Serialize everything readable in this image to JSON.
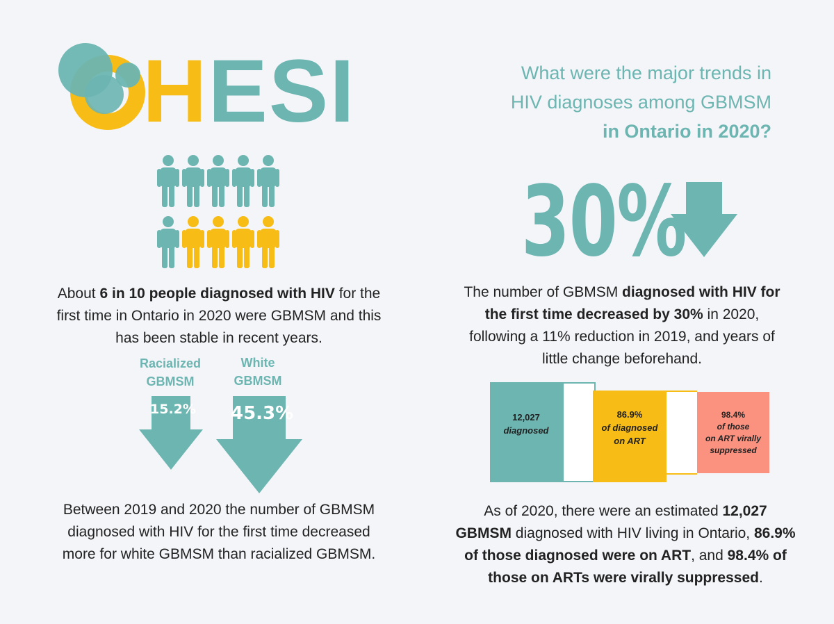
{
  "logo": {
    "letters_h": "H",
    "letters_esi": "ESI"
  },
  "question": {
    "line1": "What were the major trends in",
    "line2": "HIV diagnoses among GBMSM",
    "line3": "in Ontario in 2020?"
  },
  "people_icons": {
    "total": 10,
    "highlighted": 6,
    "colors": {
      "teal": "#6cb5b1",
      "yellow": "#f7bc16"
    }
  },
  "stat1": {
    "pre": "About ",
    "bold": "6 in 10 people diagnosed with HIV",
    "post": " for the first time in Ontario in 2020 were GBMSM and this has been stable in recent years."
  },
  "groups": {
    "racialized": {
      "label_l1": "Racialized",
      "label_l2": "GBMSM",
      "value": "15.2%"
    },
    "white": {
      "label_l1": "White",
      "label_l2": "GBMSM",
      "value": "45.3%"
    }
  },
  "stat2": {
    "text": "Between 2019 and 2020 the number of GBMSM diagnosed with HIV for the first time decreased more for white GBMSM than racialized GBMSM."
  },
  "big_stat": {
    "value": "30%",
    "icon": "down-arrow-icon"
  },
  "stat3": {
    "pre": "The number of GBMSM ",
    "bold": "diagnosed with HIV for the first time decreased by 30%",
    "post": " in 2020, following a 11% reduction in 2019, and years of little change beforehand."
  },
  "cascade": {
    "diagnosed": {
      "value": "12,027",
      "label": "diagnosed",
      "color": "#6cb5b1"
    },
    "on_art": {
      "value": "86.9%",
      "label_l1": "of diagnosed",
      "label_l2": "on ART",
      "color": "#f7bc16"
    },
    "suppressed": {
      "value": "98.4%",
      "label_l1": "of those",
      "label_l2": "on ART virally",
      "label_l3": "suppressed",
      "color": "#fb9280"
    }
  },
  "stat4": {
    "t1": "As of 2020, there were an estimated ",
    "b1": "12,027 GBMSM",
    "t2": " diagnosed with HIV living in Ontario, ",
    "b2": "86.9% of those diagnosed were on ART",
    "t3": ", and ",
    "b3": "98.4% of those on ARTs were virally suppressed",
    "t4": "."
  }
}
